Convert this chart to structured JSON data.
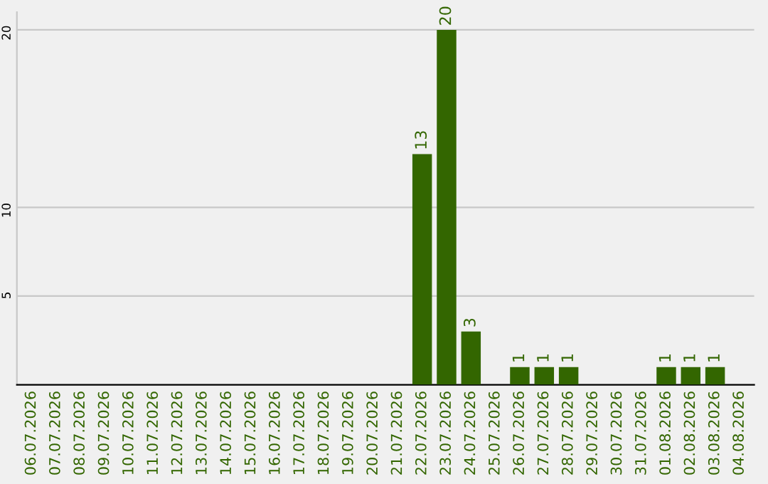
{
  "chart_data": {
    "type": "bar",
    "categories": [
      "06.07.2026",
      "07.07.2026",
      "08.07.2026",
      "09.07.2026",
      "10.07.2026",
      "11.07.2026",
      "12.07.2026",
      "13.07.2026",
      "14.07.2026",
      "15.07.2026",
      "16.07.2026",
      "17.07.2026",
      "18.07.2026",
      "19.07.2026",
      "20.07.2026",
      "21.07.2026",
      "22.07.2026",
      "23.07.2026",
      "24.07.2026",
      "25.07.2026",
      "26.07.2026",
      "27.07.2026",
      "28.07.2026",
      "29.07.2026",
      "30.07.2026",
      "31.07.2026",
      "01.08.2026",
      "02.08.2026",
      "03.08.2026",
      "04.08.2026"
    ],
    "values": [
      0,
      0,
      0,
      0,
      0,
      0,
      0,
      0,
      0,
      0,
      0,
      0,
      0,
      0,
      0,
      0,
      13,
      20,
      3,
      0,
      1,
      1,
      1,
      0,
      0,
      0,
      1,
      1,
      1,
      0
    ],
    "value_labels": [
      null,
      null,
      null,
      null,
      null,
      null,
      null,
      null,
      null,
      null,
      null,
      null,
      null,
      null,
      null,
      null,
      "13",
      "20",
      "3",
      null,
      "1",
      "1",
      "1",
      null,
      null,
      null,
      "1",
      "1",
      "1",
      null
    ],
    "color": "#336600",
    "ylim": [
      0,
      21
    ],
    "yticks": [
      5,
      10,
      20
    ],
    "grid": "y"
  }
}
